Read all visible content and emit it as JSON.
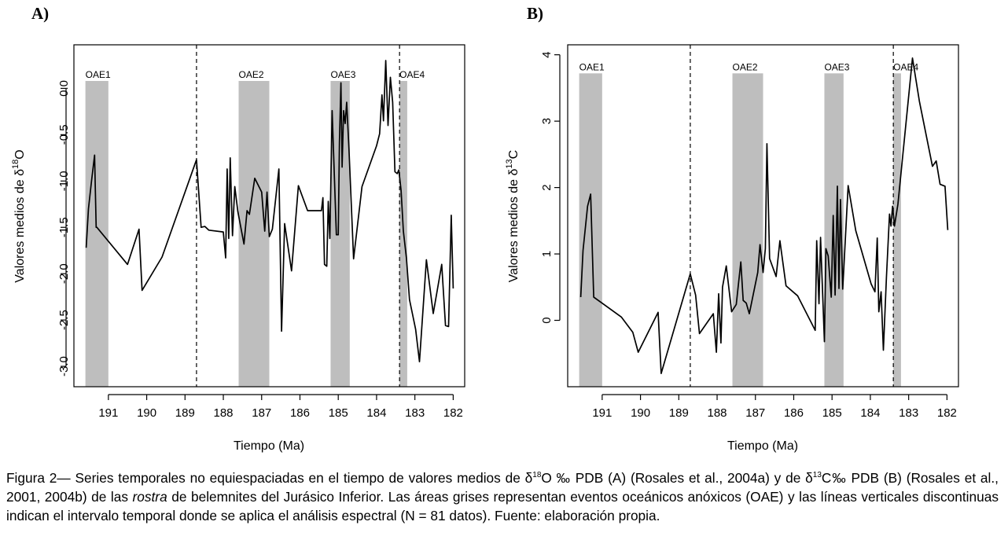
{
  "chart_data": [
    {
      "panel_label": "A)",
      "type": "line",
      "xlabel": "Tiempo (Ma)",
      "ylabel_prefix": "Valores medios de  δ",
      "ylabel_sup": "18",
      "ylabel_suffix": "O",
      "xlim": [
        191.9,
        181.7
      ],
      "ylim": [
        -3.22,
        0.47
      ],
      "x_reversed": true,
      "xticks": [
        191,
        190,
        189,
        188,
        187,
        186,
        185,
        184,
        183,
        182
      ],
      "yticks": [
        0.0,
        -0.5,
        -1.0,
        -1.5,
        -2.0,
        -2.5,
        -3.0
      ],
      "ytick_labels": [
        "0.0",
        "-0.5",
        "-1.0",
        "-1.5",
        "-2.0",
        "-2.5",
        "-3.0"
      ],
      "grid": false,
      "bands": [
        {
          "label": "OAE1",
          "start": 191.6,
          "end": 191.0
        },
        {
          "label": "OAE2",
          "start": 187.6,
          "end": 186.8
        },
        {
          "label": "OAE3",
          "start": 185.2,
          "end": 184.7
        },
        {
          "label": "OAE4",
          "start": 183.4,
          "end": 183.2
        }
      ],
      "band_top": 0.08,
      "vlines": [
        188.7,
        183.4
      ],
      "line_color": "#000000",
      "band_color": "#bebebe",
      "x": [
        191.58,
        191.52,
        191.44,
        191.36,
        191.32,
        191.3,
        190.5,
        190.2,
        190.12,
        189.6,
        188.7,
        188.58,
        188.48,
        188.38,
        188.0,
        187.94,
        187.9,
        187.86,
        187.82,
        187.76,
        187.7,
        187.62,
        187.46,
        187.38,
        187.32,
        187.18,
        187.0,
        186.92,
        186.86,
        186.8,
        186.72,
        186.55,
        186.48,
        186.4,
        186.22,
        186.04,
        185.8,
        185.62,
        185.44,
        185.4,
        185.36,
        185.3,
        185.26,
        185.22,
        185.16,
        185.05,
        185.0,
        184.97,
        184.93,
        184.9,
        184.86,
        184.82,
        184.78,
        184.72,
        184.6,
        184.38,
        184.0,
        183.92,
        183.86,
        183.82,
        183.76,
        183.7,
        183.64,
        183.58,
        183.52,
        183.46,
        183.42,
        183.36,
        183.3,
        183.22,
        183.14,
        183.06,
        182.98,
        182.88,
        182.7,
        182.52,
        182.3,
        182.2,
        182.12,
        182.05,
        182.0
      ],
      "y": [
        -1.72,
        -1.3,
        -1.0,
        -0.72,
        -1.5,
        -1.5,
        -1.9,
        -1.52,
        -2.18,
        -1.82,
        -0.77,
        -1.5,
        -1.49,
        -1.53,
        -1.55,
        -1.83,
        -0.87,
        -1.62,
        -0.75,
        -1.59,
        -1.06,
        -1.33,
        -1.68,
        -1.32,
        -1.36,
        -0.97,
        -1.12,
        -1.54,
        -1.12,
        -1.6,
        -1.52,
        -0.87,
        -2.62,
        -1.46,
        -1.97,
        -1.05,
        -1.32,
        -1.32,
        -1.32,
        -1.18,
        -1.9,
        -1.92,
        -1.22,
        -1.62,
        -0.24,
        -1.58,
        -1.58,
        -0.58,
        0.06,
        -0.85,
        -0.24,
        -0.38,
        -0.15,
        -0.65,
        -1.84,
        -1.06,
        -0.62,
        -0.49,
        -0.07,
        -0.35,
        0.3,
        -0.4,
        0.12,
        -0.15,
        -0.9,
        -0.92,
        -0.88,
        -1.1,
        -1.54,
        -1.83,
        -2.28,
        -2.44,
        -2.6,
        -2.95,
        -1.85,
        -2.43,
        -1.9,
        -2.56,
        -2.57,
        -1.37,
        -2.16
      ]
    },
    {
      "panel_label": "B)",
      "type": "line",
      "xlabel": "Tiempo (Ma)",
      "ylabel_prefix": "Valores medios de  δ",
      "ylabel_sup": "13",
      "ylabel_suffix": "C",
      "xlim": [
        191.9,
        181.7
      ],
      "ylim": [
        -1.0,
        4.15
      ],
      "x_reversed": true,
      "xticks": [
        191,
        190,
        189,
        188,
        187,
        186,
        185,
        184,
        183,
        182
      ],
      "yticks": [
        0,
        1,
        2,
        3,
        4
      ],
      "ytick_labels": [
        "0",
        "1",
        "2",
        "3",
        "4"
      ],
      "grid": false,
      "bands": [
        {
          "label": "OAE1",
          "start": 191.6,
          "end": 191.0
        },
        {
          "label": "OAE2",
          "start": 187.6,
          "end": 186.8
        },
        {
          "label": "OAE3",
          "start": 185.2,
          "end": 184.7
        },
        {
          "label": "OAE4",
          "start": 183.4,
          "end": 183.2
        }
      ],
      "band_top": 3.72,
      "vlines": [
        188.7,
        183.4
      ],
      "line_color": "#000000",
      "band_color": "#bebebe",
      "x": [
        191.56,
        191.5,
        191.38,
        191.3,
        191.22,
        190.5,
        190.2,
        190.06,
        189.54,
        189.46,
        188.7,
        188.56,
        188.46,
        188.1,
        188.02,
        187.96,
        187.9,
        187.86,
        187.76,
        187.62,
        187.5,
        187.38,
        187.32,
        187.24,
        187.16,
        186.94,
        186.88,
        186.8,
        186.74,
        186.7,
        186.63,
        186.46,
        186.36,
        186.2,
        185.9,
        185.44,
        185.4,
        185.34,
        185.3,
        185.2,
        185.16,
        185.1,
        185.02,
        184.97,
        184.92,
        184.86,
        184.82,
        184.78,
        184.72,
        184.58,
        184.38,
        183.98,
        183.88,
        183.82,
        183.78,
        183.72,
        183.66,
        183.58,
        183.5,
        183.46,
        183.42,
        183.37,
        183.28,
        182.9,
        182.72,
        182.38,
        182.28,
        182.18,
        182.05,
        181.98
      ],
      "y": [
        0.35,
        1.05,
        1.72,
        1.9,
        0.35,
        0.05,
        -0.18,
        -0.48,
        0.12,
        -0.8,
        0.7,
        0.38,
        -0.2,
        0.1,
        -0.48,
        0.4,
        -0.34,
        0.5,
        0.82,
        0.13,
        0.24,
        0.88,
        0.3,
        0.26,
        0.1,
        0.72,
        1.14,
        0.72,
        1.08,
        2.66,
        0.93,
        0.66,
        1.2,
        0.52,
        0.37,
        -0.15,
        1.2,
        0.25,
        1.25,
        -0.32,
        1.08,
        0.97,
        0.35,
        1.58,
        0.38,
        2.02,
        0.48,
        1.82,
        0.47,
        2.03,
        1.35,
        0.55,
        0.43,
        1.24,
        0.13,
        0.43,
        -0.45,
        0.65,
        1.6,
        1.42,
        1.72,
        1.42,
        1.75,
        3.95,
        3.3,
        2.32,
        2.4,
        2.05,
        2.02,
        1.36
      ]
    }
  ],
  "caption": {
    "text1": "Figura 2— Series temporales no equiespaciadas en el tiempo de valores medios de δ",
    "sup1": "18",
    "text2": "O ‰ PDB (A) (Rosales et al., 2004a) y de δ",
    "sup2": "13",
    "text3": "C‰ PDB (B) (Rosales et al., 2001, 2004b) de las ",
    "italic": "rostra",
    "text4": " de belemnites del Jurásico Inferior. Las áreas grises representan eventos oceánicos anóxicos (OAE) y las líneas verticales discontinuas indican el intervalo temporal donde se aplica el análisis espectral (N = 81 datos). Fuente: elaboración propia."
  }
}
